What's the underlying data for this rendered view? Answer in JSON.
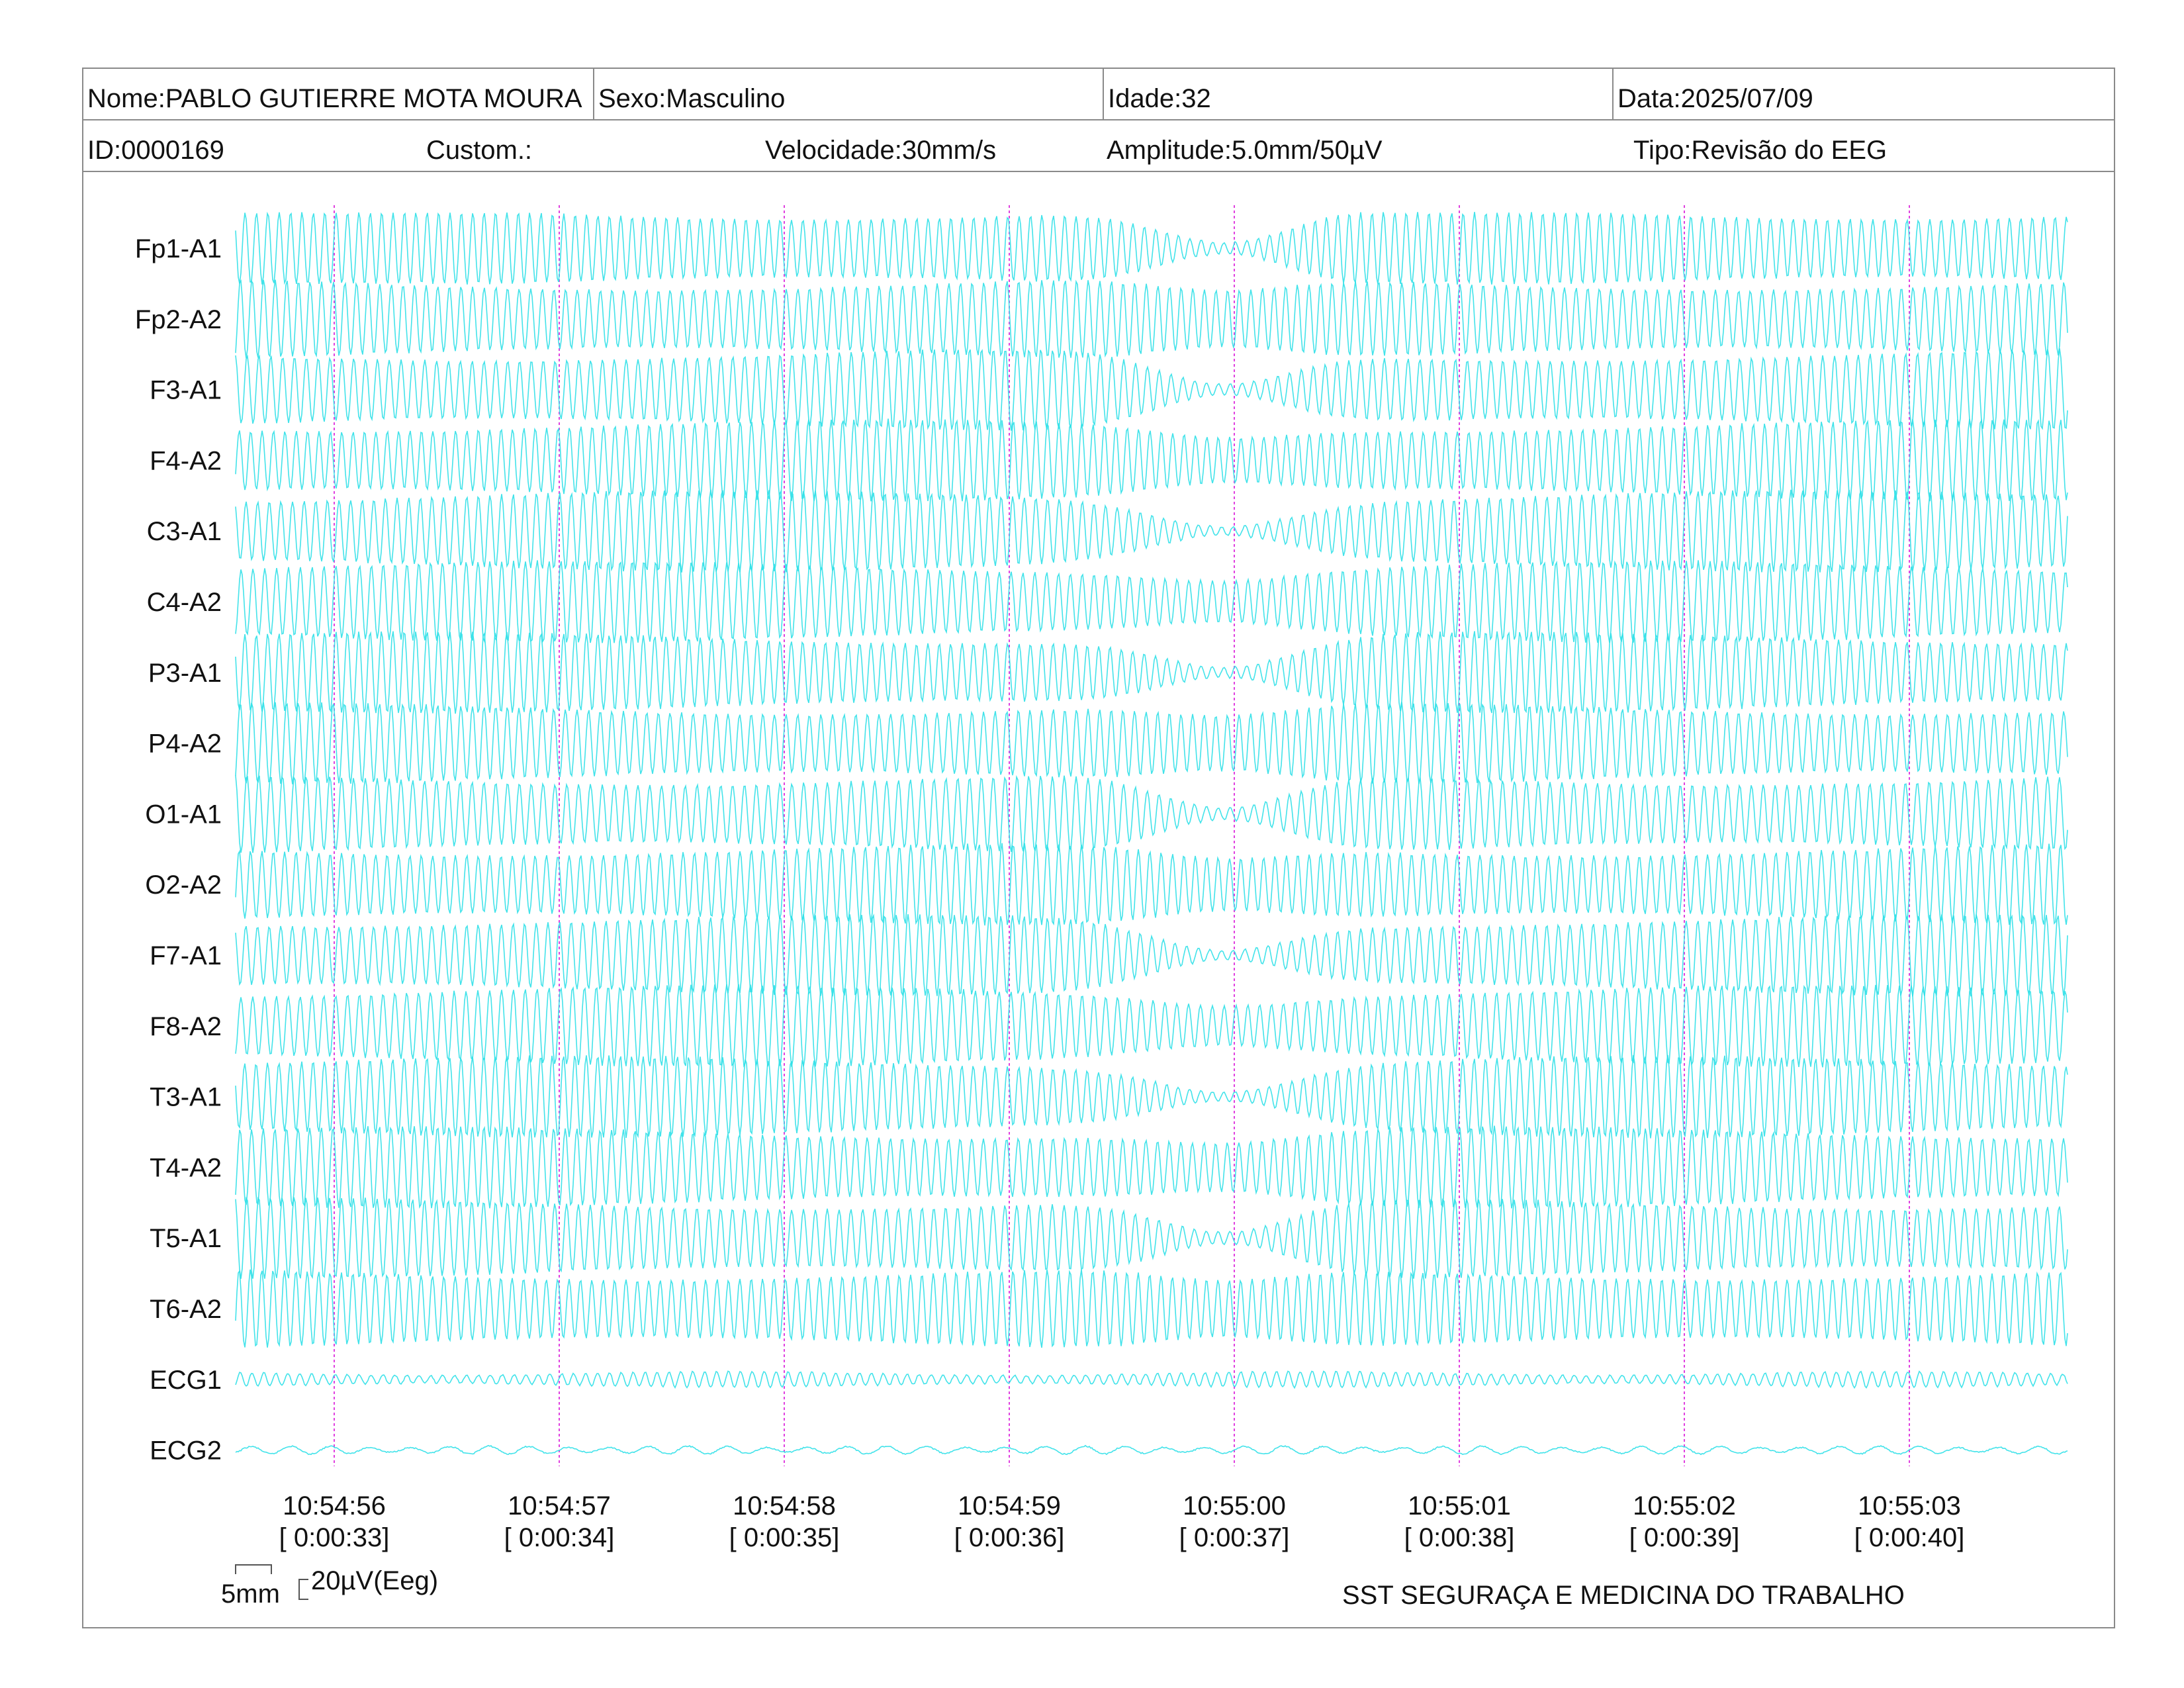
{
  "header": {
    "nome": "Nome:PABLO GUTIERRE MOTA MOURA",
    "sexo": "Sexo:Masculino",
    "idade": "Idade:32",
    "data": "Data:2025/07/09",
    "id": "ID:0000169",
    "custom": "Custom.:",
    "velocidade": "Velocidade:30mm/s",
    "amplitude": "Amplitude:5.0mm/50µV",
    "tipo": "Tipo:Revisão do EEG"
  },
  "scale": {
    "mm_label": "5mm",
    "uv_label": "20µV(Eeg)"
  },
  "footer": {
    "company": "SST SEGURAÇA E MEDICINA DO TRABALHO"
  },
  "colors": {
    "trace": "#2fe0e8",
    "marker": "#e040e0",
    "border": "#8a8a8a"
  },
  "chart_data": {
    "type": "line",
    "title": "",
    "xlabel": "",
    "ylabel": "",
    "channels": [
      "Fp1-A1",
      "Fp2-A2",
      "F3-A1",
      "F4-A2",
      "C3-A1",
      "C4-A2",
      "P3-A1",
      "P4-A2",
      "O1-A1",
      "O2-A2",
      "F7-A1",
      "F8-A2",
      "T3-A1",
      "T4-A2",
      "T5-A1",
      "T6-A2",
      "ECG1",
      "ECG2"
    ],
    "time_ticks": [
      {
        "clock": "10:54:56",
        "elapsed": "[ 0:00:33]"
      },
      {
        "clock": "10:54:57",
        "elapsed": "[ 0:00:34]"
      },
      {
        "clock": "10:54:58",
        "elapsed": "[ 0:00:35]"
      },
      {
        "clock": "10:54:59",
        "elapsed": "[ 0:00:36]"
      },
      {
        "clock": "10:55:00",
        "elapsed": "[ 0:00:37]"
      },
      {
        "clock": "10:55:01",
        "elapsed": "[ 0:00:38]"
      },
      {
        "clock": "10:55:02",
        "elapsed": "[ 0:00:39]"
      },
      {
        "clock": "10:55:03",
        "elapsed": "[ 0:00:40]"
      }
    ],
    "grid": false
  }
}
